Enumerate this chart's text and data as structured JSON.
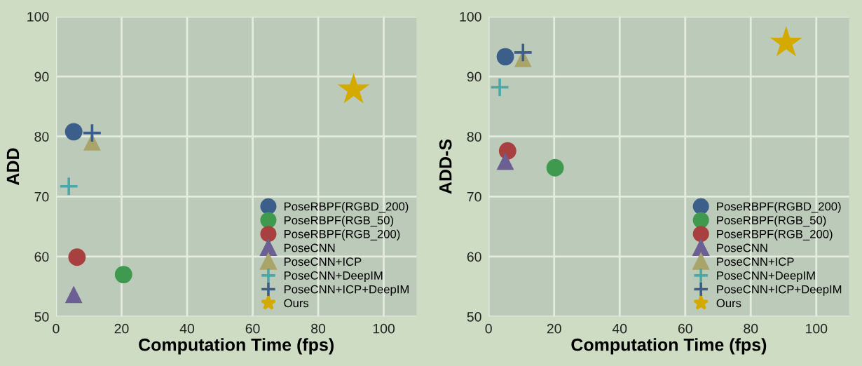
{
  "chart_data": [
    {
      "type": "scatter",
      "xlabel": "Computation Time (fps)",
      "ylabel": "ADD",
      "xlim": [
        0,
        110
      ],
      "xticks": [
        0,
        20,
        40,
        60,
        80,
        100
      ],
      "ylim": [
        50,
        100
      ],
      "yticks": [
        50,
        60,
        70,
        80,
        90,
        100
      ],
      "grid": true,
      "legend": "bottom right",
      "series": [
        {
          "name": "PoseRBPF(RGBD_200)",
          "color": "#3b5f8a",
          "marker": "circle",
          "x": [
            5.4
          ],
          "values": [
            80.8
          ]
        },
        {
          "name": "PoseRBPF(RGB_50)",
          "color": "#3f9a4f",
          "marker": "circle",
          "x": [
            20.6
          ],
          "values": [
            57.0
          ]
        },
        {
          "name": "PoseRBPF(RGB_200)",
          "color": "#a84040",
          "marker": "circle",
          "x": [
            6.4
          ],
          "values": [
            59.9
          ]
        },
        {
          "name": "PoseCNN",
          "color": "#6b5f93",
          "marker": "triangle",
          "x": [
            5.4
          ],
          "values": [
            53.7
          ]
        },
        {
          "name": "PoseCNN+ICP",
          "color": "#a9a46a",
          "marker": "triangle",
          "x": [
            11
          ],
          "values": [
            79.1
          ]
        },
        {
          "name": "PoseCNN+DeepIM",
          "color": "#4aa9a8",
          "marker": "cross",
          "x": [
            3.9
          ],
          "values": [
            71.7
          ]
        },
        {
          "name": "PoseCNN+ICP+DeepIM",
          "color": "#3d5e8c",
          "marker": "cross",
          "x": [
            11
          ],
          "values": [
            80.6
          ]
        },
        {
          "name": "Ours",
          "color": "#d4aa00",
          "marker": "star",
          "x": [
            90.8
          ],
          "values": [
            87.8
          ]
        }
      ]
    },
    {
      "type": "scatter",
      "xlabel": "Computation Time (fps)",
      "ylabel": "ADD-S",
      "xlim": [
        0,
        110
      ],
      "xticks": [
        0,
        20,
        40,
        60,
        80,
        100
      ],
      "ylim": [
        50,
        100
      ],
      "yticks": [
        50,
        60,
        70,
        80,
        90,
        100
      ],
      "grid": true,
      "legend": "bottom right",
      "series": [
        {
          "name": "PoseRBPF(RGBD_200)",
          "color": "#3b5f8a",
          "marker": "circle",
          "x": [
            5.1
          ],
          "values": [
            93.3
          ]
        },
        {
          "name": "PoseRBPF(RGB_50)",
          "color": "#3f9a4f",
          "marker": "circle",
          "x": [
            20.3
          ],
          "values": [
            74.8
          ]
        },
        {
          "name": "PoseRBPF(RGB_200)",
          "color": "#a84040",
          "marker": "circle",
          "x": [
            5.8
          ],
          "values": [
            77.6
          ]
        },
        {
          "name": "PoseCNN",
          "color": "#6b5f93",
          "marker": "triangle",
          "x": [
            5.1
          ],
          "values": [
            75.9
          ]
        },
        {
          "name": "PoseCNN+ICP",
          "color": "#a9a46a",
          "marker": "triangle",
          "x": [
            10.5
          ],
          "values": [
            93.0
          ]
        },
        {
          "name": "PoseCNN+DeepIM",
          "color": "#4aa9a8",
          "marker": "cross",
          "x": [
            3.4
          ],
          "values": [
            88.2
          ]
        },
        {
          "name": "PoseCNN+ICP+DeepIM",
          "color": "#3d5e8c",
          "marker": "cross",
          "x": [
            10.5
          ],
          "values": [
            94.0
          ]
        },
        {
          "name": "Ours",
          "color": "#d4aa00",
          "marker": "star",
          "x": [
            90.8
          ],
          "values": [
            95.6
          ]
        }
      ]
    }
  ]
}
